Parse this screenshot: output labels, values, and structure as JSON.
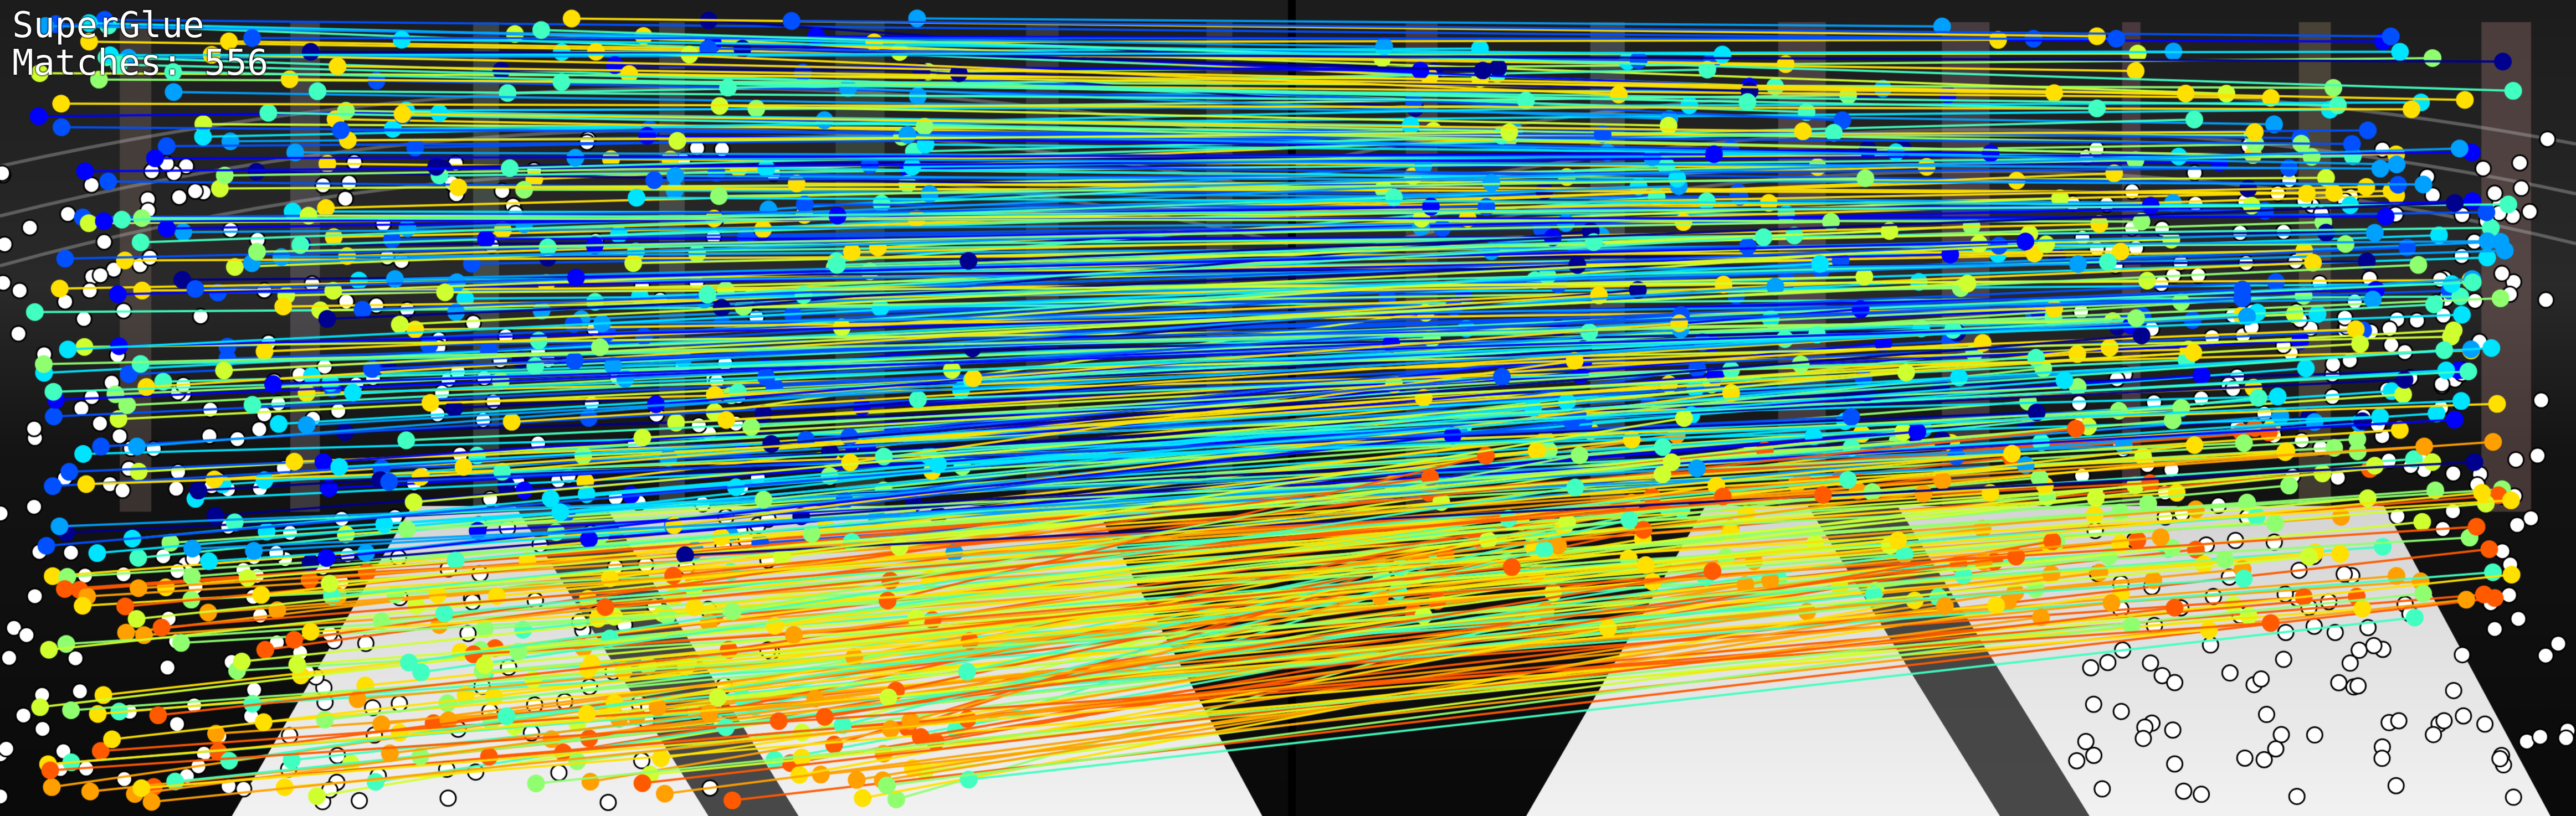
{
  "overlay": {
    "title": "SuperGlue",
    "matches_label": "Matches: 556"
  },
  "visual": {
    "background": "#000000",
    "colors": {
      "unmatched_keypoint_fill": "#ffffff",
      "unmatched_keypoint_stroke": "#000000",
      "match_palette": [
        "#00008f",
        "#0000ff",
        "#0050ff",
        "#00a0ff",
        "#00e5ff",
        "#40ffc0",
        "#8fff70",
        "#d0ff30",
        "#ffe000",
        "#ffa000",
        "#ff5a00"
      ]
    }
  }
}
